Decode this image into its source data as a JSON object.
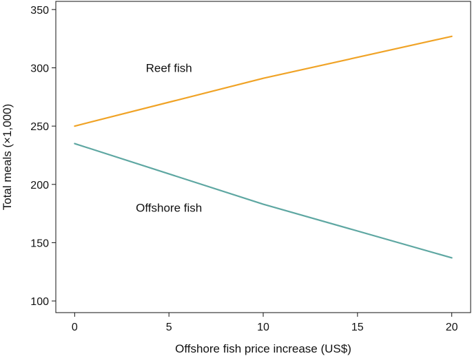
{
  "chart_data": {
    "type": "line",
    "title": "",
    "xlabel": "Offshore fish price increase (US$)",
    "ylabel": "Total meals (×1,000)",
    "xlim": [
      -1,
      21
    ],
    "ylim": [
      90,
      357
    ],
    "xticks": [
      0,
      5,
      10,
      15,
      20
    ],
    "yticks": [
      100,
      150,
      200,
      250,
      300,
      350
    ],
    "xtick_labels": [
      "0",
      "5",
      "10",
      "15",
      "20"
    ],
    "ytick_labels": [
      "100",
      "150",
      "200",
      "250",
      "300",
      "350"
    ],
    "grid": false,
    "legend": "none (inline series labels)",
    "series": [
      {
        "name": "Reef fish",
        "color": "#f0a326",
        "x": [
          0,
          10,
          20
        ],
        "y": [
          250,
          291,
          327
        ]
      },
      {
        "name": "Offshore fish",
        "color": "#5ea7a2",
        "x": [
          0,
          10,
          20
        ],
        "y": [
          235,
          183,
          137
        ]
      }
    ],
    "annotations": [
      {
        "text": "Reef fish",
        "series": 0,
        "x": 5,
        "y": 300
      },
      {
        "text": "Offshore fish",
        "series": 1,
        "x": 5,
        "y": 180
      }
    ]
  }
}
